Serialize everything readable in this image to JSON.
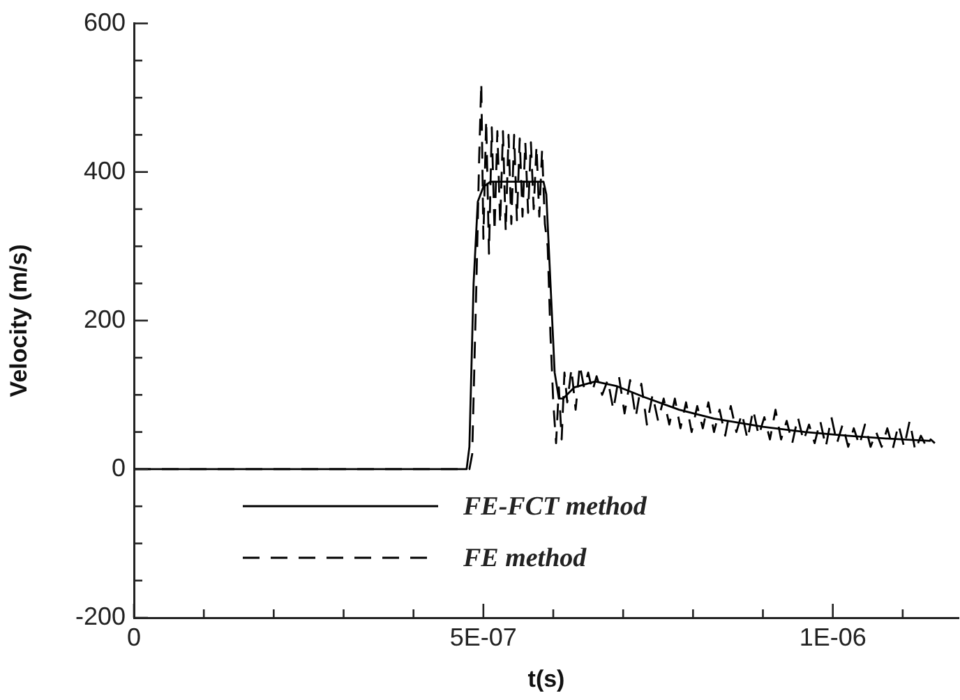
{
  "chart_data": {
    "type": "line",
    "xlabel": "t(s)",
    "ylabel": "Velocity (m/s)",
    "xlim": [
      0,
      1.18e-06
    ],
    "ylim": [
      -200,
      600
    ],
    "xticks": [
      0,
      {
        "value": 1e-07,
        "label": null
      },
      {
        "value": 2e-07,
        "label": null
      },
      {
        "value": 3e-07,
        "label": null
      },
      {
        "value": 4e-07,
        "label": null
      },
      {
        "value": 5e-07,
        "label": "5E-07"
      },
      {
        "value": 6e-07,
        "label": null
      },
      {
        "value": 7e-07,
        "label": null
      },
      {
        "value": 8e-07,
        "label": null
      },
      {
        "value": 9e-07,
        "label": null
      },
      {
        "value": 1e-06,
        "label": "1E-06"
      },
      {
        "value": 1.1e-06,
        "label": null
      }
    ],
    "yticks": [
      -200,
      {
        "value": -150,
        "label": null
      },
      {
        "value": -100,
        "label": null
      },
      {
        "value": -50,
        "label": null
      },
      0,
      {
        "value": 50,
        "label": null
      },
      {
        "value": 100,
        "label": null
      },
      {
        "value": 150,
        "label": null
      },
      200,
      {
        "value": 250,
        "label": null
      },
      {
        "value": 300,
        "label": null
      },
      {
        "value": 350,
        "label": null
      },
      400,
      {
        "value": 450,
        "label": null
      },
      {
        "value": 500,
        "label": null
      },
      {
        "value": 550,
        "label": null
      },
      600
    ],
    "grid": false,
    "legend": "bottom left",
    "marker": "none",
    "series": [
      {
        "name": "FE-FCT method",
        "color": "#000000",
        "line_style": "solid",
        "x": [
          0,
          4.76e-07,
          4.8e-07,
          4.86e-07,
          4.92e-07,
          5e-07,
          5.1e-07,
          5.86e-07,
          5.9e-07,
          5.96e-07,
          6.02e-07,
          6.08e-07,
          6.14e-07,
          6.3e-07,
          6.6e-07,
          6.9e-07,
          7.3e-07,
          7.8e-07,
          8.3e-07,
          9e-07,
          9.6e-07,
          1.02e-06,
          1.08e-06,
          1.14e-06
        ],
        "values": [
          0,
          0,
          30,
          250,
          360,
          380,
          387,
          387,
          370,
          250,
          130,
          95,
          95,
          110,
          118,
          112,
          97,
          80,
          68,
          57,
          50,
          45,
          41,
          38
        ]
      },
      {
        "name": "FE method",
        "color": "#000000",
        "line_style": "dashed",
        "x": [
          0,
          4.8e-07,
          4.84e-07,
          4.9e-07,
          4.94e-07,
          4.97e-07,
          5e-07,
          5.04e-07,
          5.08e-07,
          5.12e-07,
          5.16e-07,
          5.2e-07,
          5.24e-07,
          5.28e-07,
          5.32e-07,
          5.36e-07,
          5.4e-07,
          5.44e-07,
          5.48e-07,
          5.52e-07,
          5.56e-07,
          5.6e-07,
          5.64e-07,
          5.68e-07,
          5.72e-07,
          5.76e-07,
          5.8e-07,
          5.84e-07,
          5.88e-07,
          5.92e-07,
          5.96e-07,
          6e-07,
          6.04e-07,
          6.08e-07,
          6.12e-07,
          6.16e-07,
          6.2e-07,
          6.26e-07,
          6.32e-07,
          6.38e-07,
          6.44e-07,
          6.5e-07,
          6.56e-07,
          6.62e-07,
          6.7e-07,
          6.78e-07,
          6.86e-07,
          6.94e-07,
          7.02e-07,
          7.1e-07,
          7.18e-07,
          7.26e-07,
          7.34e-07,
          7.42e-07,
          7.5e-07,
          7.58e-07,
          7.66e-07,
          7.74e-07,
          7.82e-07,
          7.9e-07,
          7.98e-07,
          8.06e-07,
          8.14e-07,
          8.22e-07,
          8.3e-07,
          8.38e-07,
          8.46e-07,
          8.54e-07,
          8.62e-07,
          8.7e-07,
          8.78e-07,
          8.86e-07,
          8.94e-07,
          9.02e-07,
          9.1e-07,
          9.18e-07,
          9.26e-07,
          9.34e-07,
          9.42e-07,
          9.5e-07,
          9.58e-07,
          9.66e-07,
          9.74e-07,
          9.82e-07,
          9.9e-07,
          9.98e-07,
          1.006e-06,
          1.014e-06,
          1.022e-06,
          1.03e-06,
          1.038e-06,
          1.046e-06,
          1.054e-06,
          1.062e-06,
          1.07e-06,
          1.078e-06,
          1.086e-06,
          1.094e-06,
          1.102e-06,
          1.11e-06,
          1.118e-06,
          1.126e-06,
          1.134e-06,
          1.14e-06,
          1.146e-06
        ],
        "values": [
          0,
          0,
          20,
          250,
          420,
          520,
          310,
          470,
          290,
          460,
          320,
          455,
          330,
          455,
          320,
          450,
          330,
          450,
          335,
          445,
          340,
          440,
          345,
          440,
          350,
          435,
          340,
          430,
          330,
          300,
          180,
          90,
          35,
          110,
          40,
          130,
          90,
          135,
          80,
          140,
          110,
          130,
          105,
          125,
          100,
          120,
          80,
          125,
          75,
          120,
          70,
          115,
          60,
          100,
          65,
          95,
          60,
          95,
          55,
          90,
          50,
          85,
          55,
          90,
          50,
          80,
          45,
          85,
          50,
          75,
          40,
          80,
          45,
          70,
          40,
          80,
          40,
          65,
          35,
          70,
          38,
          60,
          35,
          65,
          30,
          70,
          35,
          60,
          30,
          55,
          32,
          60,
          30,
          50,
          30,
          55,
          28,
          60,
          30,
          65,
          25,
          45,
          30,
          40,
          35
        ]
      }
    ]
  }
}
